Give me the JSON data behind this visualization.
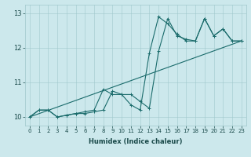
{
  "xlabel": "Humidex (Indice chaleur)",
  "bg_color": "#cce8ec",
  "grid_color": "#a0c8cc",
  "line_color": "#1a6b6b",
  "xlim": [
    -0.5,
    23.5
  ],
  "ylim": [
    9.75,
    13.25
  ],
  "yticks": [
    10,
    11,
    12,
    13
  ],
  "xticks": [
    0,
    1,
    2,
    3,
    4,
    5,
    6,
    7,
    8,
    9,
    10,
    11,
    12,
    13,
    14,
    15,
    16,
    17,
    18,
    19,
    20,
    21,
    22,
    23
  ],
  "line1_x": [
    0,
    1,
    2,
    3,
    4,
    5,
    6,
    7,
    8,
    9,
    10,
    11,
    12,
    13,
    14,
    15,
    16,
    17,
    18,
    19,
    20,
    21,
    22,
    23
  ],
  "line1_y": [
    10.0,
    10.2,
    10.2,
    10.0,
    10.05,
    10.1,
    10.1,
    10.15,
    10.2,
    10.75,
    10.65,
    10.65,
    10.45,
    10.25,
    11.9,
    12.85,
    12.35,
    12.25,
    12.2,
    12.85,
    12.35,
    12.55,
    12.2,
    12.2
  ],
  "line2_x": [
    0,
    1,
    2,
    3,
    4,
    5,
    6,
    7,
    8,
    9,
    10,
    11,
    12,
    13,
    14,
    15,
    16,
    17,
    18,
    19,
    20,
    21,
    22,
    23
  ],
  "line2_y": [
    10.0,
    10.2,
    10.2,
    10.0,
    10.05,
    10.1,
    10.15,
    10.2,
    10.8,
    10.65,
    10.65,
    10.35,
    10.2,
    11.85,
    12.9,
    12.7,
    12.4,
    12.2,
    12.2,
    12.85,
    12.35,
    12.55,
    12.2,
    12.2
  ],
  "trend_x": [
    0,
    23
  ],
  "trend_y": [
    10.0,
    12.2
  ],
  "xlabel_fontsize": 6,
  "tick_fontsize": 5,
  "line_width": 0.8,
  "marker_size": 2.5
}
